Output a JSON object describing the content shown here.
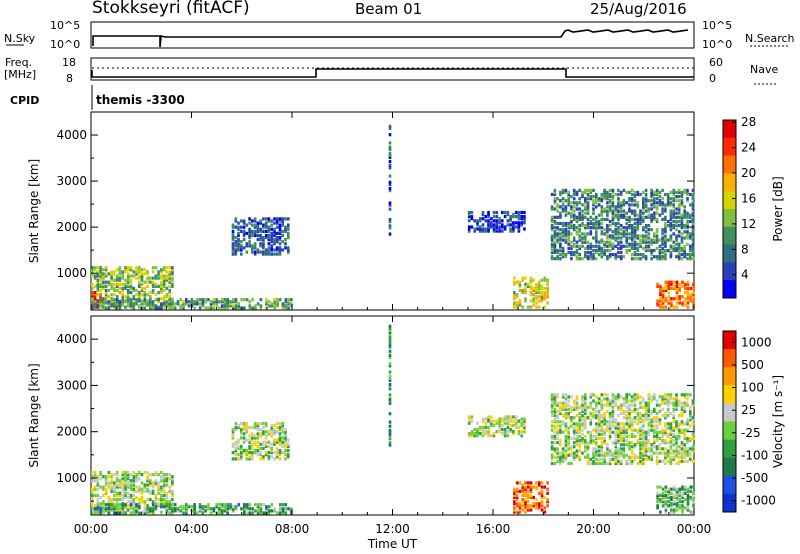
{
  "header": {
    "site": "Stokkseyri (fitACF)",
    "beam": "Beam 01",
    "date": "25/Aug/2016"
  },
  "top_panels": {
    "nsky_label": "N.Sky",
    "nsky_ticks": [
      "10^5",
      "10^0"
    ],
    "nsearch_label": "N.Search",
    "nsearch_ticks": [
      "10^5",
      "10^0"
    ],
    "freq_label": "Freq.",
    "freq_unit": "[MHz]",
    "freq_ticks": [
      "18",
      "8"
    ],
    "nave_label": "Nave",
    "nave_ticks": [
      "60",
      "0"
    ],
    "cpid_label": "CPID",
    "cpid_value": "themis -3300"
  },
  "chart_data": [
    {
      "type": "heatmap",
      "name": "power",
      "ylabel": "Slant Range [km]",
      "xlabel": "",
      "yticks": [
        "1000",
        "2000",
        "3000",
        "4000"
      ],
      "ylim": [
        200,
        4500
      ],
      "colorbar_label": "Power [dB]",
      "colorbar_ticks": [
        "4",
        "8",
        "12",
        "16",
        "20",
        "24",
        "28"
      ],
      "colorbar_colors": [
        "#0000ff",
        "#2a3fb8",
        "#2f6f7f",
        "#3f8f5f",
        "#7fbf3f",
        "#d4d400",
        "#ffb000",
        "#ff7000",
        "#ff2a00",
        "#e00000"
      ],
      "regions": [
        {
          "x0": 0.0,
          "x1": 3.2,
          "y0": 250,
          "y1": 1150,
          "level": 0.45
        },
        {
          "x0": 0.0,
          "x1": 0.4,
          "y0": 250,
          "y1": 600,
          "level": 0.9
        },
        {
          "x0": 0.0,
          "x1": 8.0,
          "y0": 230,
          "y1": 420,
          "level": 0.35
        },
        {
          "x0": 5.6,
          "x1": 7.9,
          "y0": 1400,
          "y1": 2200,
          "level": 0.2
        },
        {
          "x0": 11.85,
          "x1": 11.95,
          "y0": 1700,
          "y1": 4300,
          "level": 0.2
        },
        {
          "x0": 15.0,
          "x1": 17.3,
          "y0": 1900,
          "y1": 2350,
          "level": 0.15
        },
        {
          "x0": 16.8,
          "x1": 18.2,
          "y0": 250,
          "y1": 900,
          "level": 0.55
        },
        {
          "x0": 18.3,
          "x1": 24.0,
          "y0": 1300,
          "y1": 2800,
          "level": 0.3
        },
        {
          "x0": 22.5,
          "x1": 24.0,
          "y0": 250,
          "y1": 800,
          "level": 0.75
        }
      ]
    },
    {
      "type": "heatmap",
      "name": "velocity",
      "ylabel": "Slant Range [km]",
      "xlabel": "Time UT",
      "xticks": [
        "00:00",
        "04:00",
        "08:00",
        "12:00",
        "16:00",
        "20:00",
        "00:00"
      ],
      "yticks": [
        "1000",
        "2000",
        "3000",
        "4000"
      ],
      "ylim": [
        200,
        4500
      ],
      "colorbar_label": "Velocity [m s⁻¹]",
      "colorbar_ticks": [
        "1000",
        "500",
        "100",
        "25",
        "-25",
        "-100",
        "-500",
        "-1000"
      ],
      "colorbar_colors": [
        "#1030d0",
        "#2050e0",
        "#1f7a4a",
        "#2f9f3f",
        "#6ccf3f",
        "#c8c8c8",
        "#ffd000",
        "#ff9a00",
        "#ff5a00",
        "#e00000"
      ],
      "regions": [
        {
          "x0": 0.0,
          "x1": 3.2,
          "y0": 250,
          "y1": 1150,
          "level": 0.5
        },
        {
          "x0": 0.0,
          "x1": 8.0,
          "y0": 230,
          "y1": 450,
          "level": 0.35
        },
        {
          "x0": 5.6,
          "x1": 7.9,
          "y0": 1400,
          "y1": 2200,
          "level": 0.5
        },
        {
          "x0": 11.85,
          "x1": 11.95,
          "y0": 1700,
          "y1": 4300,
          "level": 0.3
        },
        {
          "x0": 15.0,
          "x1": 17.3,
          "y0": 1900,
          "y1": 2350,
          "level": 0.5
        },
        {
          "x0": 16.8,
          "x1": 18.2,
          "y0": 250,
          "y1": 900,
          "level": 0.85
        },
        {
          "x0": 18.3,
          "x1": 24.0,
          "y0": 1300,
          "y1": 2800,
          "level": 0.5
        },
        {
          "x0": 22.5,
          "x1": 24.0,
          "y0": 250,
          "y1": 800,
          "level": 0.4
        }
      ]
    }
  ]
}
